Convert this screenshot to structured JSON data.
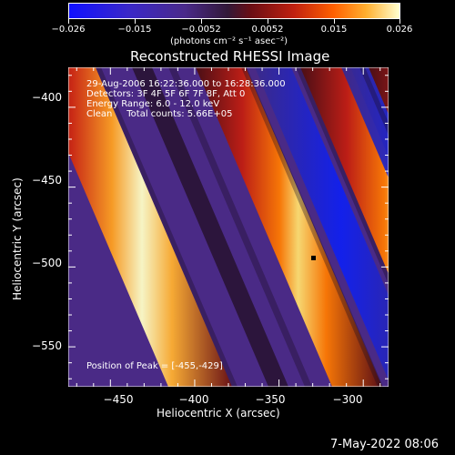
{
  "colorbar": {
    "ticks": [
      "−0.026",
      "−0.015",
      "−0.0052",
      "0.0052",
      "0.015",
      "0.026"
    ],
    "units": "(photons cm⁻² s⁻¹ asec⁻²)"
  },
  "chart_data": {
    "type": "heatmap",
    "title": "Reconstructed RHESSI Image",
    "xlabel": "Heliocentric X (arcsec)",
    "ylabel": "Heliocentric Y (arcsec)",
    "xlim": [
      -475,
      -285
    ],
    "ylim": [
      -575,
      -375
    ],
    "xticks": [
      "−450",
      "−400",
      "−350",
      "−300"
    ],
    "yticks": [
      "−400",
      "−450",
      "−500",
      "−550"
    ],
    "value_range": [
      -0.026,
      0.026
    ],
    "colormap": [
      "#0000ff",
      "#4b2a9a",
      "#3b1a4a",
      "#b01818",
      "#ff6a00",
      "#fff0a0"
    ],
    "info_lines": [
      "29-Aug-2006 16:22:36.000 to 16:28:36.000",
      "Detectors: 3F 4F 5F 6F 7F 8F, Att 0",
      "Energy Range: 6.0 - 12.0 keV",
      "Clean     Total counts: 5.66E+05"
    ],
    "peak_label": "Position of Peak = [-455,-429]",
    "peak": [
      -455,
      -429
    ]
  },
  "footer": {
    "date": "7-May-2022 08:06"
  }
}
